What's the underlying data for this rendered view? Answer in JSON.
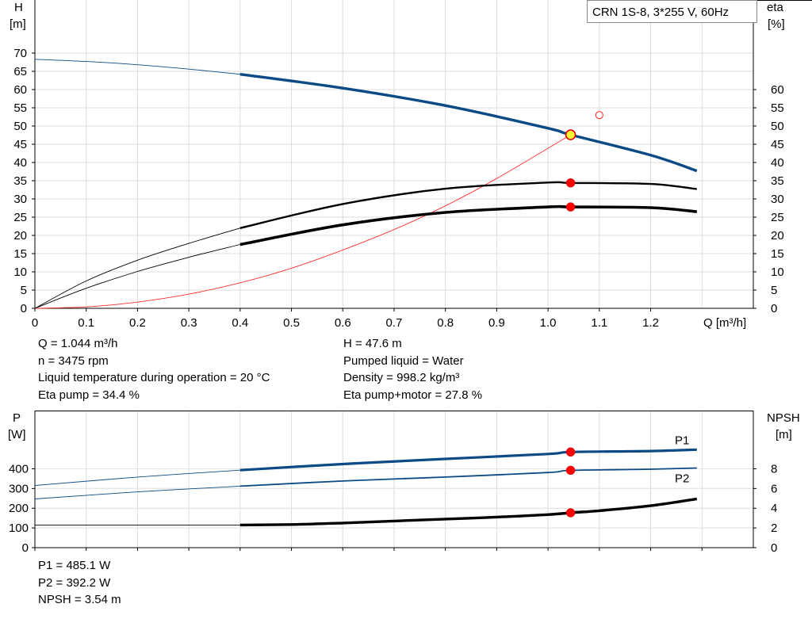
{
  "chart_data": [
    {
      "type": "line",
      "title": "CRN 1S-8, 3*255 V, 60Hz",
      "xlabel": "Q [m³/h]",
      "ylabel_left": [
        "H",
        "[m]"
      ],
      "ylabel_right": [
        "eta",
        "[%]"
      ],
      "xlim": [
        0,
        1.4
      ],
      "ylim_left": [
        0,
        75
      ],
      "ylim_right": [
        0,
        75
      ],
      "x_ticks": [
        "0",
        "0.1",
        "0.2",
        "0.3",
        "0.4",
        "0.5",
        "0.6",
        "0.7",
        "0.8",
        "0.9",
        "1.0",
        "1.1",
        "1.2"
      ],
      "y_ticks_left": [
        "0",
        "5",
        "10",
        "15",
        "20",
        "25",
        "30",
        "35",
        "40",
        "45",
        "50",
        "55",
        "60",
        "65",
        "70"
      ],
      "y_ticks_right": [
        "0",
        "5",
        "10",
        "15",
        "20",
        "25",
        "30",
        "35",
        "40",
        "45",
        "50",
        "55",
        "60"
      ],
      "grid": true,
      "series": [
        {
          "id": "H",
          "color": "#0b4a84",
          "x": [
            0,
            0.1,
            0.2,
            0.3,
            0.4,
            0.6,
            0.8,
            1.0,
            1.044,
            1.2,
            1.29
          ],
          "y": [
            68.3,
            67.7,
            66.8,
            65.6,
            64.2,
            60.4,
            55.6,
            49.4,
            47.6,
            42.0,
            37.7
          ]
        },
        {
          "id": "eta_pump",
          "color": "#000000",
          "x": [
            0,
            0.1,
            0.2,
            0.3,
            0.4,
            0.6,
            0.8,
            1.0,
            1.044,
            1.2,
            1.29
          ],
          "y": [
            0,
            7.5,
            13.2,
            17.8,
            22.0,
            28.6,
            32.8,
            34.5,
            34.4,
            34.1,
            32.7
          ]
        },
        {
          "id": "eta_pump_motor",
          "color": "#000000",
          "x": [
            0,
            0.1,
            0.2,
            0.3,
            0.4,
            0.6,
            0.8,
            1.0,
            1.044,
            1.2,
            1.29
          ],
          "y": [
            0,
            5.5,
            10.1,
            14.0,
            17.5,
            22.9,
            26.3,
            27.8,
            27.8,
            27.6,
            26.5
          ]
        },
        {
          "id": "system",
          "color": "#ff3030",
          "x": [
            0,
            0.1,
            0.2,
            0.3,
            0.4,
            0.5,
            0.6,
            0.7,
            0.8,
            0.9,
            1.0,
            1.044
          ],
          "y": [
            0,
            0.4,
            1.7,
            3.9,
            7.0,
            11.0,
            16.0,
            21.6,
            28.1,
            35.6,
            43.9,
            47.6
          ]
        }
      ],
      "operating_point": {
        "q": 1.044,
        "h": 47.6,
        "eta_pump": 34.4,
        "eta_pump_motor": 27.8
      },
      "reference_point": {
        "q": 1.1,
        "h": 53
      }
    },
    {
      "type": "line",
      "xlabel": "",
      "ylabel_left": [
        "P",
        "[W]"
      ],
      "ylabel_right": [
        "NPSH",
        "[m]"
      ],
      "xlim": [
        0,
        1.4
      ],
      "ylim_left": [
        0,
        500
      ],
      "ylim_right": [
        0,
        10
      ],
      "y_ticks_left": [
        "0",
        "100",
        "200",
        "300",
        "400"
      ],
      "y_ticks_right": [
        "0",
        "2",
        "4",
        "6",
        "8"
      ],
      "grid": true,
      "series": [
        {
          "id": "P1",
          "name": "P1",
          "color": "#0b4a84",
          "x": [
            0,
            0.2,
            0.4,
            0.6,
            0.8,
            1.0,
            1.044,
            1.2,
            1.29
          ],
          "y": [
            315,
            358,
            393,
            424,
            450,
            475,
            485,
            490,
            497
          ]
        },
        {
          "id": "P2",
          "name": "P2",
          "color": "#0b4a84",
          "x": [
            0,
            0.2,
            0.4,
            0.6,
            0.8,
            1.0,
            1.044,
            1.2,
            1.29
          ],
          "y": [
            247,
            283,
            312,
            338,
            358,
            381,
            392,
            398,
            404
          ]
        },
        {
          "id": "NPSH",
          "color": "#000000",
          "x": [
            0,
            0.08,
            0.4,
            0.5,
            0.6,
            0.7,
            0.8,
            0.9,
            1.0,
            1.044,
            1.1,
            1.2,
            1.29
          ],
          "y": [
            2.3,
            2.3,
            2.3,
            2.35,
            2.5,
            2.7,
            2.9,
            3.1,
            3.35,
            3.54,
            3.75,
            4.25,
            4.95
          ]
        }
      ],
      "operating_point": {
        "q": 1.044,
        "p1": 485.1,
        "p2": 392.2,
        "npsh": 3.54
      }
    }
  ],
  "info_upper": {
    "left": [
      "Q = 1.044 m³/h",
      "n = 3475 rpm",
      "Liquid temperature during operation = 20 °C",
      "Eta pump = 34.4 %"
    ],
    "right": [
      "H = 47.6 m",
      "Pumped liquid = Water",
      "Density = 998.2 kg/m³",
      "Eta pump+motor = 27.8 %"
    ]
  },
  "info_lower": [
    "P1 = 485.1 W",
    "P2 = 392.2 W",
    "NPSH = 3.54 m"
  ]
}
